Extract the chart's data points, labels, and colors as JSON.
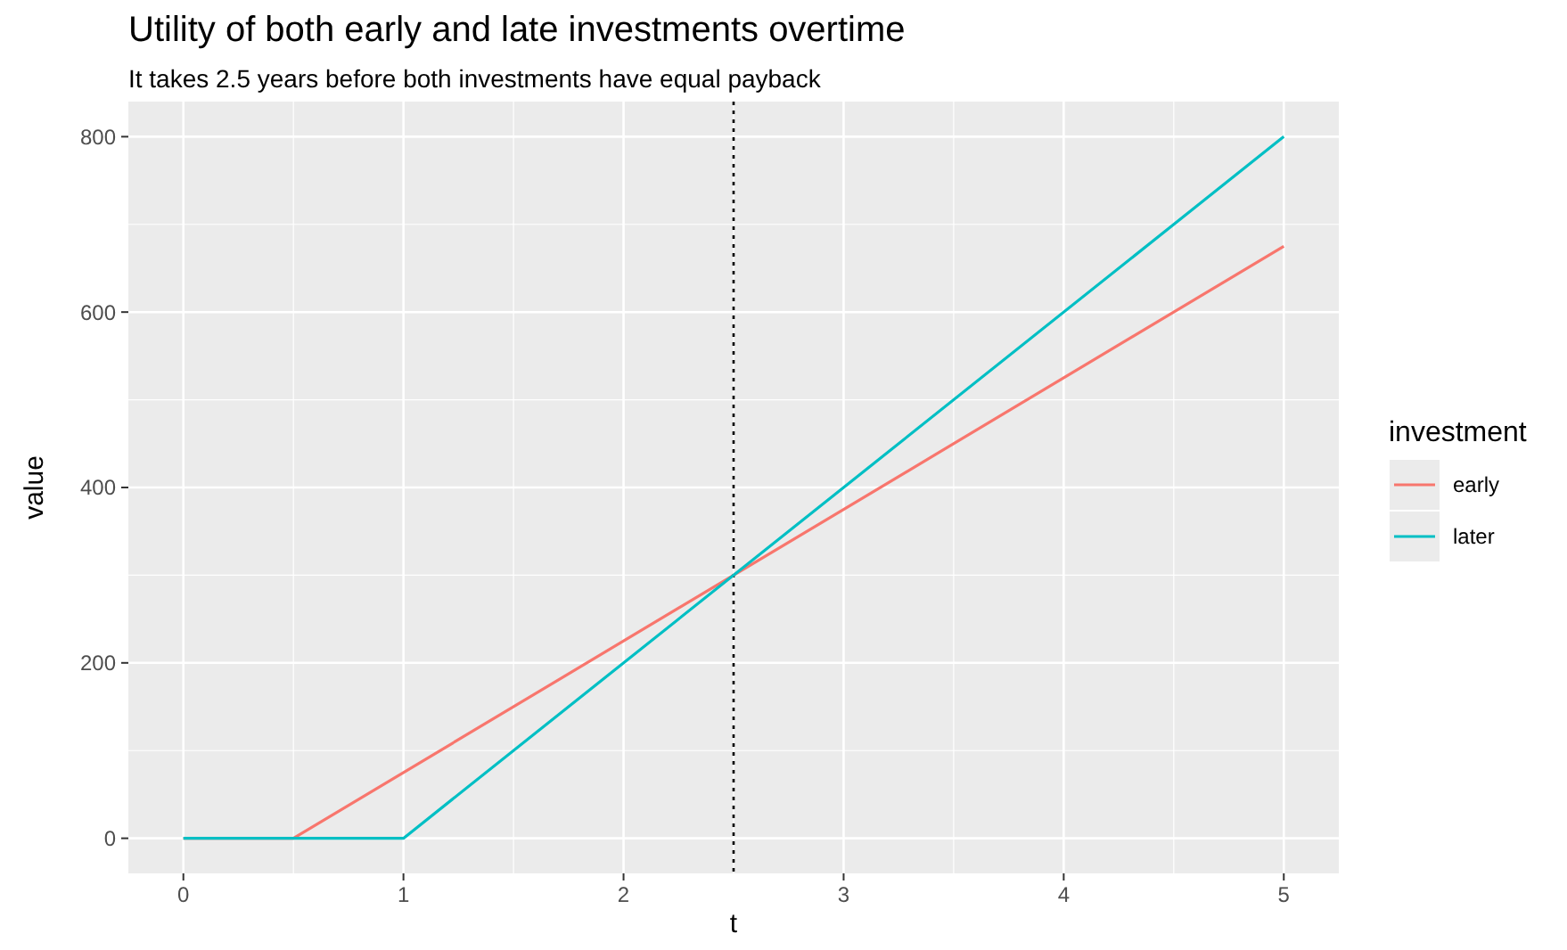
{
  "chart_data": {
    "type": "line",
    "title": "Utility of both early and late investments overtime",
    "subtitle": "It takes 2.5 years before both investments have equal payback",
    "xlabel": "t",
    "ylabel": "value",
    "legend_title": "investment",
    "series": [
      {
        "name": "early",
        "color": "#f8766d",
        "x": [
          0,
          0.5,
          5
        ],
        "values": [
          0,
          0,
          675
        ]
      },
      {
        "name": "later",
        "color": "#00bfc4",
        "x": [
          0,
          1,
          5
        ],
        "values": [
          0,
          0,
          800
        ]
      }
    ],
    "xlim": [
      -0.25,
      5.25
    ],
    "xticks": [
      0,
      1,
      2,
      3,
      4,
      5
    ],
    "ylim": [
      -40,
      840
    ],
    "yticks": [
      0,
      200,
      400,
      600,
      800
    ],
    "ref_lines": [
      {
        "axis": "x",
        "value": 2.5,
        "line_style": "dotted",
        "color": "#000000"
      }
    ],
    "grid": true,
    "legend": "right",
    "line_style": "solid"
  }
}
